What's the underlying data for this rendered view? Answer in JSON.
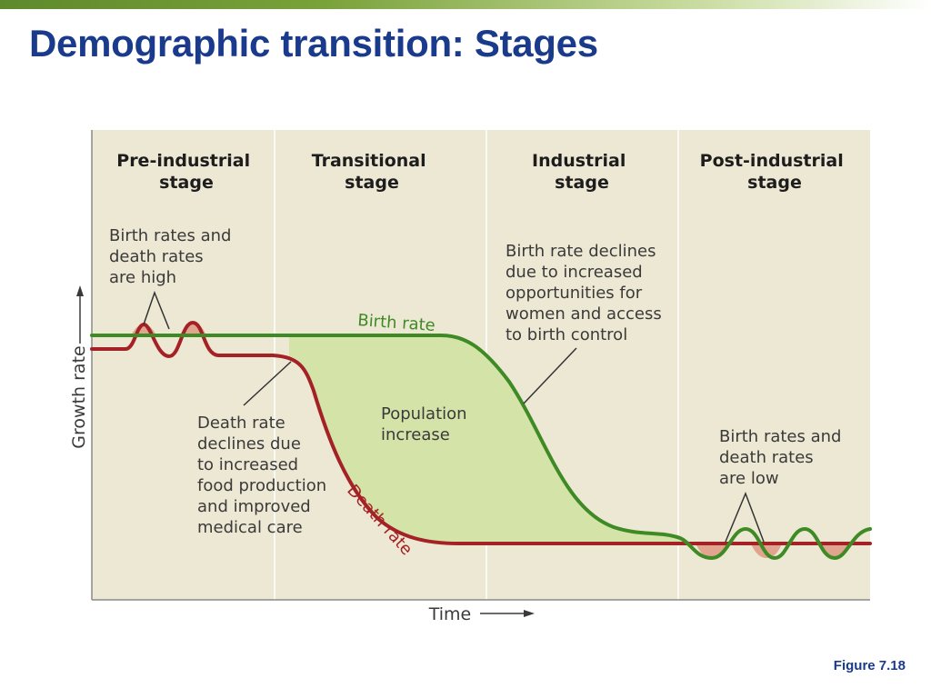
{
  "slide": {
    "title": "Demographic transition: Stages",
    "figure_label": "Figure 7.18"
  },
  "diagram": {
    "stages": [
      {
        "line1": "Pre-industrial",
        "line2": "stage"
      },
      {
        "line1": "Transitional",
        "line2": "stage"
      },
      {
        "line1": "Industrial",
        "line2": "stage"
      },
      {
        "line1": "Post-industrial",
        "line2": "stage"
      }
    ],
    "annotations": {
      "high_rates": [
        "Birth rates and",
        "death rates",
        "are high"
      ],
      "death_decline": [
        "Death rate",
        "declines due",
        "to increased",
        "food production",
        "and improved",
        "medical care"
      ],
      "birth_decline": [
        "Birth rate declines",
        "due to increased",
        "opportunities for",
        "women and access",
        "to birth control"
      ],
      "population_increase": [
        "Population",
        "increase"
      ],
      "low_rates": [
        "Birth rates and",
        "death rates",
        "are low"
      ]
    },
    "curve_labels": {
      "birth": "Birth rate",
      "death": "Death rate"
    },
    "axes": {
      "x": "Time",
      "y": "Growth rate"
    },
    "colors": {
      "background": "#ede8d3",
      "birth_curve": "#3e8a25",
      "death_curve": "#a42226",
      "population_fill": "#d4e3a8",
      "decline_fill": "#e0a48f",
      "title": "#1a3a8c"
    }
  }
}
